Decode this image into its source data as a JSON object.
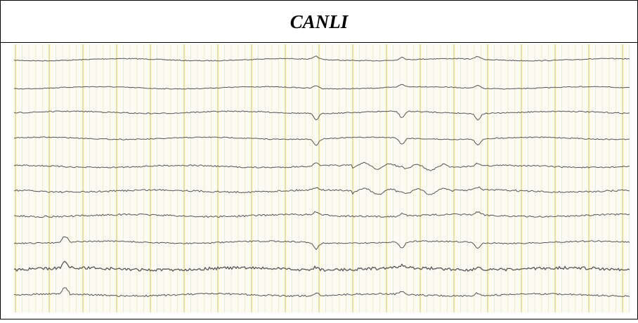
{
  "header": {
    "title": "CANLI"
  }
}
